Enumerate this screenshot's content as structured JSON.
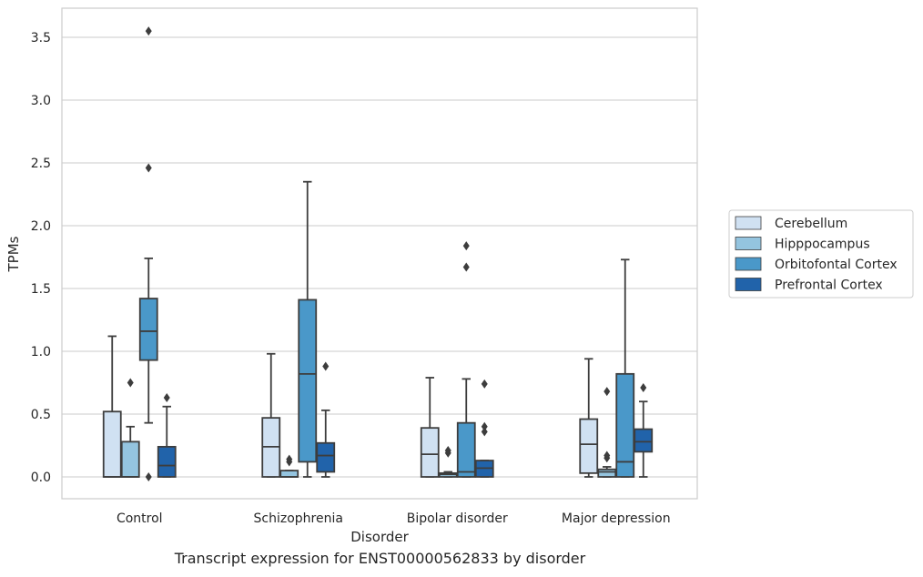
{
  "caption": "Transcript expression for ENST00000562833 by disorder",
  "chart_data": {
    "type": "box",
    "title": "",
    "xlabel": "Disorder",
    "ylabel": "TPMs",
    "ylim": [
      -0.17,
      3.72
    ],
    "yticks": [
      0.0,
      0.5,
      1.0,
      1.5,
      2.0,
      2.5,
      3.0,
      3.5
    ],
    "ytick_labels": [
      "0.0",
      "0.5",
      "1.0",
      "1.5",
      "2.0",
      "2.5",
      "3.0",
      "3.5"
    ],
    "grid": "horizontal",
    "legend_position": "right",
    "categories": [
      "Control",
      "Schizophrenia",
      "Bipolar disorder",
      "Major depression"
    ],
    "series": [
      {
        "name": "Cerebellum",
        "color": "#d0e1f2",
        "boxes": [
          {
            "whislo": 0.0,
            "q1": 0.0,
            "med": 0.0,
            "q3": 0.52,
            "whishi": 1.12,
            "fliers": []
          },
          {
            "whislo": 0.0,
            "q1": 0.0,
            "med": 0.24,
            "q3": 0.47,
            "whishi": 0.98,
            "fliers": []
          },
          {
            "whislo": 0.0,
            "q1": 0.0,
            "med": 0.18,
            "q3": 0.39,
            "whishi": 0.79,
            "fliers": []
          },
          {
            "whislo": 0.0,
            "q1": 0.03,
            "med": 0.26,
            "q3": 0.46,
            "whishi": 0.94,
            "fliers": []
          }
        ]
      },
      {
        "name": "Hipppocampus",
        "color": "#94c4df",
        "boxes": [
          {
            "whislo": 0.0,
            "q1": 0.0,
            "med": 0.0,
            "q3": 0.28,
            "whishi": 0.4,
            "fliers": [
              0.75
            ]
          },
          {
            "whislo": 0.0,
            "q1": 0.0,
            "med": 0.0,
            "q3": 0.05,
            "whishi": 0.05,
            "fliers": [
              0.12,
              0.14
            ]
          },
          {
            "whislo": 0.0,
            "q1": 0.0,
            "med": 0.02,
            "q3": 0.03,
            "whishi": 0.04,
            "fliers": [
              0.19,
              0.21
            ]
          },
          {
            "whislo": 0.0,
            "q1": 0.0,
            "med": 0.04,
            "q3": 0.06,
            "whishi": 0.08,
            "fliers": [
              0.15,
              0.17,
              0.68
            ]
          }
        ]
      },
      {
        "name": "Orbitofontal Cortex",
        "color": "#4a98c9",
        "boxes": [
          {
            "whislo": 0.43,
            "q1": 0.93,
            "med": 1.16,
            "q3": 1.42,
            "whishi": 1.74,
            "fliers": [
              0.0,
              2.46,
              3.55
            ]
          },
          {
            "whislo": 0.0,
            "q1": 0.12,
            "med": 0.82,
            "q3": 1.41,
            "whishi": 2.35,
            "fliers": []
          },
          {
            "whislo": 0.0,
            "q1": 0.0,
            "med": 0.04,
            "q3": 0.43,
            "whishi": 0.78,
            "fliers": [
              1.67,
              1.84
            ]
          },
          {
            "whislo": 0.0,
            "q1": 0.0,
            "med": 0.12,
            "q3": 0.82,
            "whishi": 1.73,
            "fliers": []
          }
        ]
      },
      {
        "name": "Prefrontal Cortex",
        "color": "#2163aa",
        "boxes": [
          {
            "whislo": 0.0,
            "q1": 0.0,
            "med": 0.09,
            "q3": 0.24,
            "whishi": 0.56,
            "fliers": [
              0.63
            ]
          },
          {
            "whislo": 0.0,
            "q1": 0.04,
            "med": 0.17,
            "q3": 0.27,
            "whishi": 0.53,
            "fliers": [
              0.88
            ]
          },
          {
            "whislo": 0.0,
            "q1": 0.0,
            "med": 0.07,
            "q3": 0.13,
            "whishi": 0.13,
            "fliers": [
              0.36,
              0.4,
              0.74
            ]
          },
          {
            "whislo": 0.0,
            "q1": 0.2,
            "med": 0.28,
            "q3": 0.38,
            "whishi": 0.6,
            "fliers": [
              0.71
            ]
          }
        ]
      }
    ]
  }
}
